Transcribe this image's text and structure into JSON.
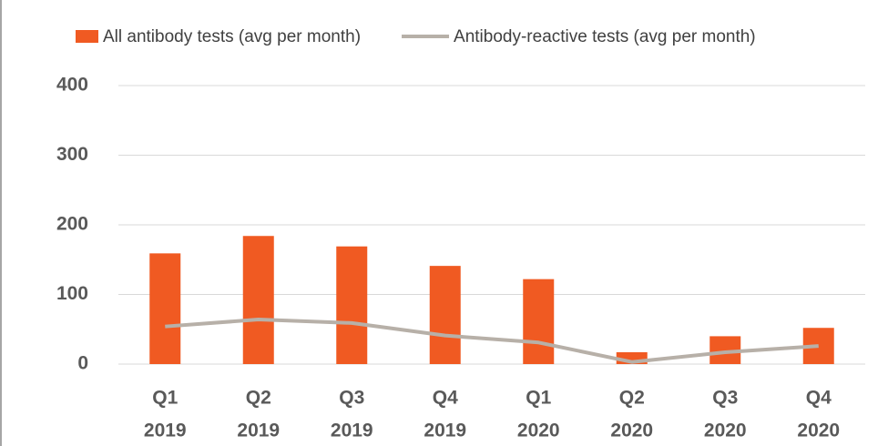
{
  "chart_data": {
    "type": "bar_line",
    "categories": [
      [
        "Q1",
        "2019"
      ],
      [
        "Q2",
        "2019"
      ],
      [
        "Q3",
        "2019"
      ],
      [
        "Q4",
        "2019"
      ],
      [
        "Q1",
        "2020"
      ],
      [
        "Q2",
        "2020"
      ],
      [
        "Q3",
        "2020"
      ],
      [
        "Q4",
        "2020"
      ]
    ],
    "series": [
      {
        "name": "All antibody tests (avg per month)",
        "type": "bar",
        "color": "#f05a22",
        "values": [
          159,
          184,
          169,
          141,
          122,
          17,
          40,
          52
        ]
      },
      {
        "name": "Antibody-reactive tests (avg per month)",
        "type": "line",
        "color": "#b7b0a8",
        "values": [
          54,
          64,
          59,
          41,
          31,
          3,
          17,
          26
        ]
      }
    ],
    "ylim": [
      0,
      400
    ],
    "yticks": [
      0,
      100,
      200,
      300,
      400
    ],
    "grid": true,
    "legend": "top"
  }
}
